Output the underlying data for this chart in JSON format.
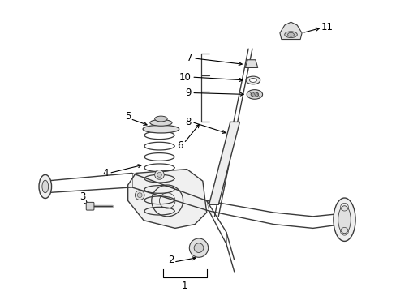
{
  "background_color": "#ffffff",
  "line_color": "#3a3a3a",
  "text_color": "#000000",
  "fig_width": 4.89,
  "fig_height": 3.6,
  "dpi": 100
}
